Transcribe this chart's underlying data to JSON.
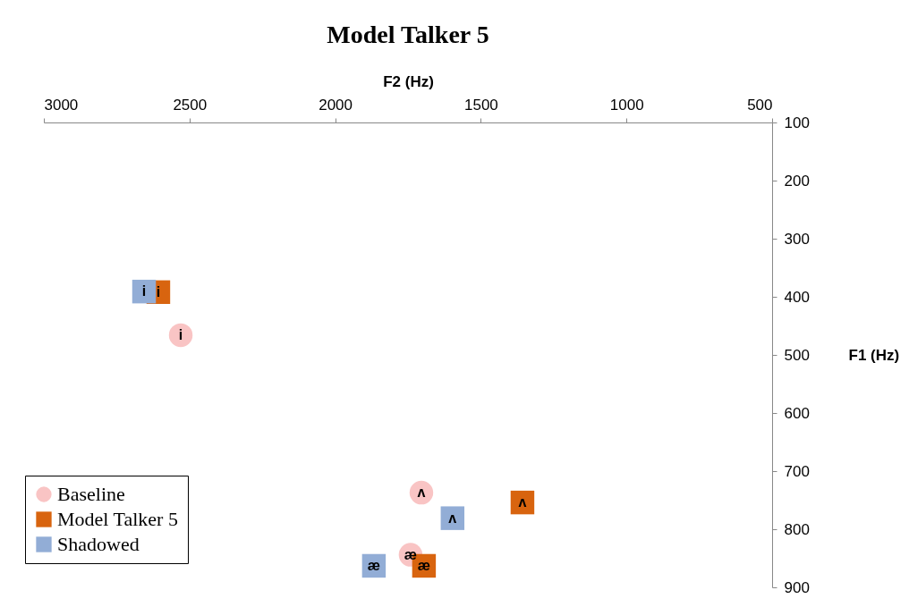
{
  "chart_data": {
    "type": "scatter",
    "title": "Model Talker 5",
    "xlabel": "F2 (Hz)",
    "ylabel": "F1 (Hz)",
    "xlim": [
      3000,
      500
    ],
    "xticks": [
      3000,
      2500,
      2000,
      1500,
      1000,
      500
    ],
    "ylim": [
      900,
      100
    ],
    "yticks": [
      100,
      200,
      300,
      400,
      500,
      600,
      700,
      800,
      900
    ],
    "legend": "bottom left",
    "grid": false,
    "series": [
      {
        "name": "Baseline",
        "color": "#f9c4c4",
        "marker": "circle",
        "x": [
          2530,
          1704,
          1741
        ],
        "values": [
          466,
          737,
          844
        ],
        "value_labels": [
          "i",
          "ʌ",
          "æ"
        ]
      },
      {
        "name": "Model Talker 5",
        "color": "#d8640f",
        "marker": "square",
        "x": [
          2607,
          1357,
          1695
        ],
        "values": [
          392,
          754,
          863
        ],
        "value_labels": [
          "i",
          "ʌ",
          "æ"
        ]
      },
      {
        "name": "Shadowed",
        "color": "#92add6",
        "marker": "square",
        "x": [
          2656,
          1597,
          1867
        ],
        "values": [
          391,
          781,
          863
        ],
        "value_labels": [
          "i",
          "ʌ",
          "æ"
        ]
      }
    ]
  }
}
